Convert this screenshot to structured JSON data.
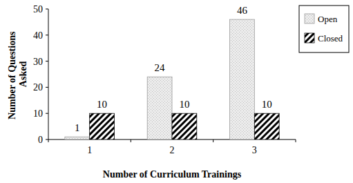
{
  "chart_data": {
    "type": "bar",
    "x_label": "Number of Curriculum Trainings",
    "y_label": "Number of Questions Asked",
    "categories": [
      "1",
      "2",
      "3"
    ],
    "series": [
      {
        "name": "Open",
        "color": "#bdbdbd",
        "values": [
          1,
          24,
          46
        ]
      },
      {
        "name": "Closed",
        "color": "#000000",
        "values": [
          10,
          10,
          10
        ]
      }
    ],
    "ylim": [
      0,
      50
    ],
    "yticks": [
      0,
      10,
      20,
      30,
      40,
      50
    ],
    "grid": false,
    "legend": "right",
    "data_labels": true
  }
}
